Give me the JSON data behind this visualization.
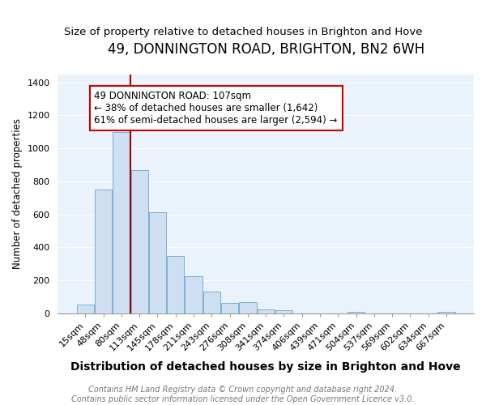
{
  "title": "49, DONNINGTON ROAD, BRIGHTON, BN2 6WH",
  "subtitle": "Size of property relative to detached houses in Brighton and Hove",
  "xlabel": "Distribution of detached houses by size in Brighton and Hove",
  "ylabel": "Number of detached properties",
  "bar_labels": [
    "15sqm",
    "48sqm",
    "80sqm",
    "113sqm",
    "145sqm",
    "178sqm",
    "211sqm",
    "243sqm",
    "276sqm",
    "308sqm",
    "341sqm",
    "374sqm",
    "406sqm",
    "439sqm",
    "471sqm",
    "504sqm",
    "537sqm",
    "569sqm",
    "602sqm",
    "634sqm",
    "667sqm"
  ],
  "bar_values": [
    55,
    750,
    1100,
    870,
    615,
    350,
    228,
    130,
    65,
    70,
    25,
    18,
    0,
    0,
    0,
    10,
    0,
    0,
    0,
    0,
    10
  ],
  "bar_color": "#cddff0",
  "bar_edge_color": "#7bafd4",
  "vline_color": "#aa0000",
  "ylim": [
    0,
    1450
  ],
  "yticks": [
    0,
    200,
    400,
    600,
    800,
    1000,
    1200,
    1400
  ],
  "annotation_text": "49 DONNINGTON ROAD: 107sqm\n← 38% of detached houses are smaller (1,642)\n61% of semi-detached houses are larger (2,594) →",
  "annotation_box_edge": "#cc0000",
  "plot_bg_color": "#eaf2fb",
  "grid_color": "#ffffff",
  "footer_line1": "Contains HM Land Registry data © Crown copyright and database right 2024.",
  "footer_line2": "Contains public sector information licensed under the Open Government Licence v3.0.",
  "title_fontsize": 12,
  "subtitle_fontsize": 9.5,
  "xlabel_fontsize": 10,
  "ylabel_fontsize": 8.5,
  "tick_fontsize": 8,
  "footer_fontsize": 7,
  "annot_fontsize": 8.5
}
